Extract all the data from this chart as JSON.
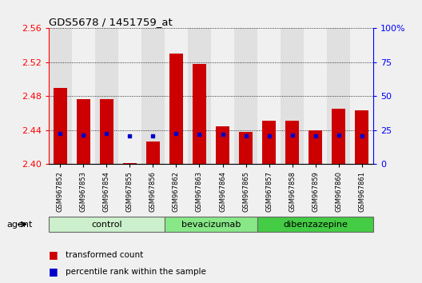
{
  "title": "GDS5678 / 1451759_at",
  "samples": [
    "GSM967852",
    "GSM967853",
    "GSM967854",
    "GSM967855",
    "GSM967856",
    "GSM967862",
    "GSM967863",
    "GSM967864",
    "GSM967865",
    "GSM967857",
    "GSM967858",
    "GSM967859",
    "GSM967860",
    "GSM967861"
  ],
  "transformed_count": [
    2.49,
    2.477,
    2.477,
    2.401,
    2.427,
    2.53,
    2.518,
    2.445,
    2.438,
    2.451,
    2.451,
    2.44,
    2.465,
    2.463
  ],
  "blue_marker_value": [
    2.436,
    2.434,
    2.436,
    2.433,
    2.433,
    2.436,
    2.435,
    2.435,
    2.433,
    2.433,
    2.434,
    2.433,
    2.434,
    2.433
  ],
  "ymin": 2.4,
  "ymax": 2.56,
  "yticks_left": [
    2.4,
    2.44,
    2.48,
    2.52,
    2.56
  ],
  "right_yticks_pct": [
    0,
    25,
    50,
    75,
    100
  ],
  "bar_color": "#cc0000",
  "blue_color": "#0000cc",
  "background_color": "#f0f0f0",
  "plot_bg": "#ffffff",
  "col_bg_even": "#e0e0e0",
  "col_bg_odd": "#f0f0f0",
  "groups": [
    {
      "label": "control",
      "indices": [
        0,
        1,
        2,
        3,
        4
      ],
      "color": "#ccf0cc"
    },
    {
      "label": "bevacizumab",
      "indices": [
        5,
        6,
        7,
        8
      ],
      "color": "#88e888"
    },
    {
      "label": "dibenzazepine",
      "indices": [
        9,
        10,
        11,
        12,
        13
      ],
      "color": "#44cc44"
    }
  ],
  "legend_items": [
    {
      "label": "transformed count",
      "color": "#cc0000"
    },
    {
      "label": "percentile rank within the sample",
      "color": "#0000cc"
    }
  ]
}
